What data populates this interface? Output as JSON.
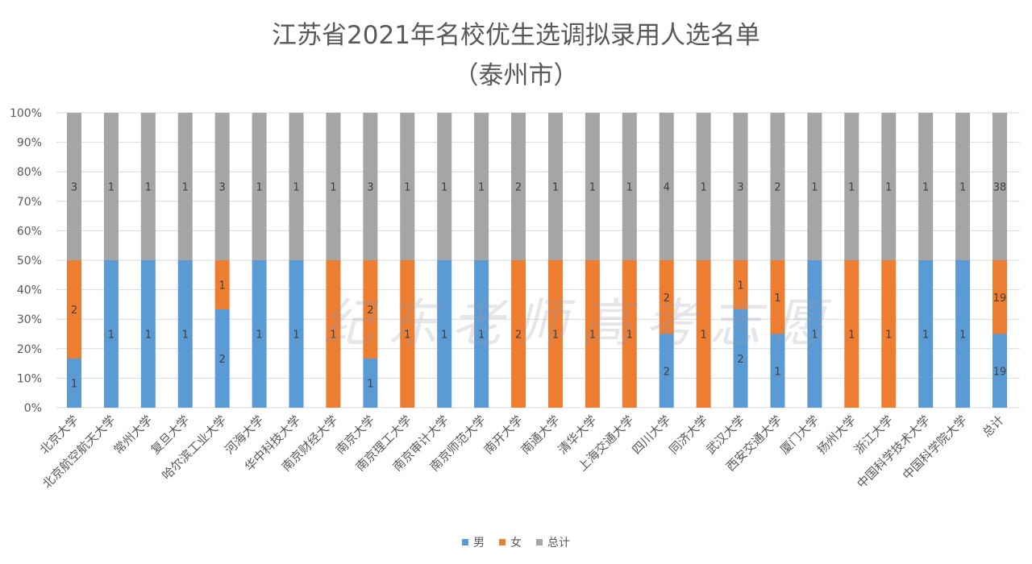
{
  "chart_data": {
    "type": "bar",
    "stacking": "percent",
    "title": "江苏省2021年名校优生选调拟录用人选名单",
    "subtitle": "（泰州市）",
    "categories": [
      "北京大学",
      "北京航空航天大学",
      "常州大学",
      "复旦大学",
      "哈尔滨工业大学",
      "河海大学",
      "华中科技大学",
      "南京财经大学",
      "南京大学",
      "南京理工大学",
      "南京审计大学",
      "南京师范大学",
      "南开大学",
      "南通大学",
      "清华大学",
      "上海交通大学",
      "四川大学",
      "同济大学",
      "武汉大学",
      "西安交通大学",
      "厦门大学",
      "扬州大学",
      "浙江大学",
      "中国科学技术大学",
      "中国科学院大学",
      "总计"
    ],
    "series": [
      {
        "name": "男",
        "color": "#5B9BD5",
        "values": [
          1,
          1,
          1,
          1,
          2,
          1,
          1,
          0,
          1,
          0,
          1,
          1,
          0,
          0,
          0,
          0,
          2,
          0,
          2,
          1,
          1,
          0,
          0,
          1,
          1,
          19
        ]
      },
      {
        "name": "女",
        "color": "#ED7D31",
        "values": [
          2,
          0,
          0,
          0,
          1,
          0,
          0,
          1,
          2,
          1,
          0,
          0,
          2,
          1,
          1,
          1,
          2,
          1,
          1,
          1,
          0,
          1,
          1,
          0,
          0,
          19
        ]
      },
      {
        "name": "总计",
        "color": "#A5A5A5",
        "values": [
          3,
          1,
          1,
          1,
          3,
          1,
          1,
          1,
          3,
          1,
          1,
          1,
          2,
          1,
          1,
          1,
          4,
          1,
          3,
          2,
          1,
          1,
          1,
          1,
          1,
          38
        ]
      }
    ],
    "yticks": [
      "0%",
      "10%",
      "20%",
      "30%",
      "40%",
      "50%",
      "60%",
      "70%",
      "80%",
      "90%",
      "100%"
    ],
    "ylim": [
      0,
      100
    ],
    "grid": true,
    "legend": "bottom",
    "data_labels": true
  },
  "watermark": "纪东老师高考志愿"
}
